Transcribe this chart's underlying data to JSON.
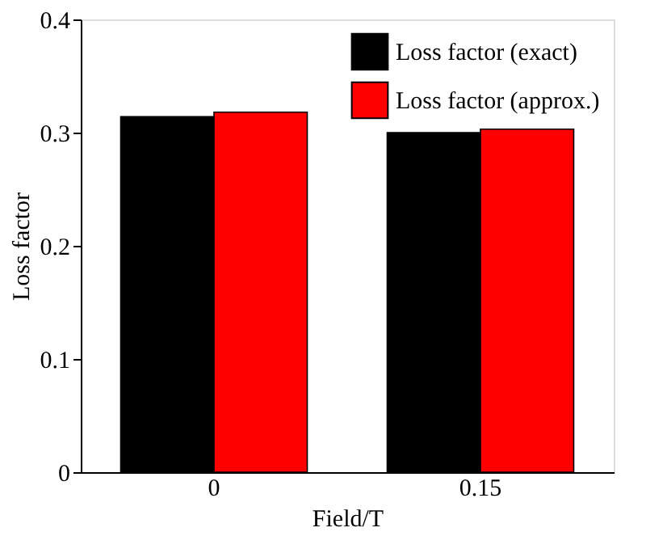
{
  "chart_data": {
    "type": "bar",
    "xlabel": "Field/T",
    "ylabel": "Loss factor",
    "categories": [
      "0",
      "0.15"
    ],
    "series": [
      {
        "name": "Loss factor (exact)",
        "color": "#000000",
        "values": [
          0.314,
          0.3
        ]
      },
      {
        "name": "Loss factor (approx.)",
        "color": "#ff0000",
        "values": [
          0.318,
          0.303
        ]
      }
    ],
    "ylim": [
      0,
      0.4
    ],
    "yticks": [
      0,
      0.1,
      0.2,
      0.3,
      0.4
    ],
    "grid": false,
    "legend": "top right"
  }
}
